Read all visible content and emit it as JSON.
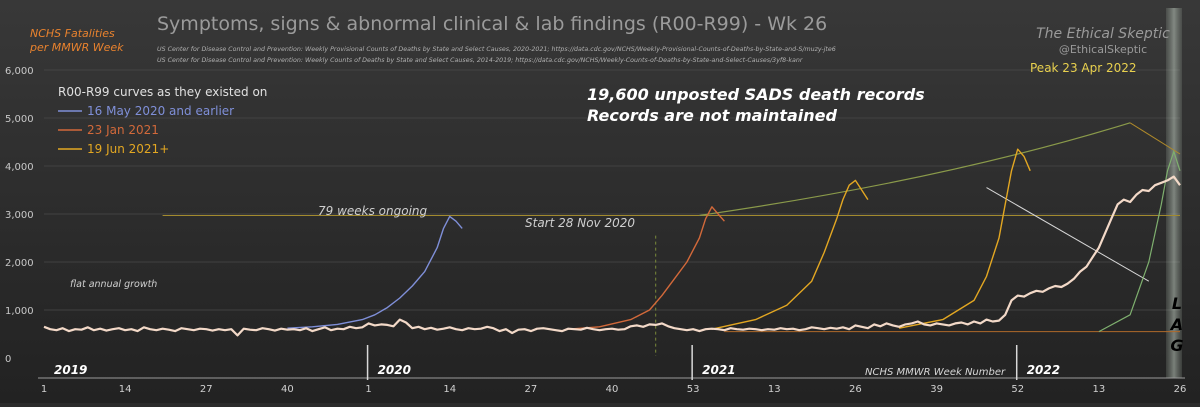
{
  "chart_data": {
    "type": "line",
    "title": "Symptoms, signs & abnormal clinical & lab findings (R00-R99)  -  Wk 26",
    "ylabel_line1": "NCHS Fatalities",
    "ylabel_line2": "per MMWR Week",
    "xlabel": "NCHS MMWR Week Number",
    "sources": [
      "US Center for Disease Control and Prevention: Weekly  Provisional Counts of Deaths by State and Select Causes, 2020-2021; https://data.cdc.gov/NCHS/Weekly-Provisional-Counts-of-Deaths-by-State-and-S/muzy-jte6",
      "US Center for Disease Control and Prevention: Weekly  Counts of Deaths by State and Select Causes, 2014-2019; https://data.cdc.gov/NCHS/Weekly-Counts-of-Deaths-by-State-and-Select-Causes/3yf8-kanr"
    ],
    "brand": {
      "name": "The Ethical Skeptic",
      "handle": "@EthicalSkeptic"
    },
    "ylim": [
      0,
      6000
    ],
    "yticks": [
      0,
      1000,
      2000,
      3000,
      4000,
      5000,
      6000
    ],
    "ytick_labels": [
      "0",
      "1,000",
      "2,000",
      "3,000",
      "4,000",
      "5,000",
      "6,000"
    ],
    "xlim": [
      1,
      183
    ],
    "xticks": [
      {
        "i": 1,
        "label": "1"
      },
      {
        "i": 14,
        "label": "14"
      },
      {
        "i": 27,
        "label": "27"
      },
      {
        "i": 40,
        "label": "40"
      },
      {
        "i": 53,
        "label": "1"
      },
      {
        "i": 66,
        "label": "14"
      },
      {
        "i": 79,
        "label": "27"
      },
      {
        "i": 92,
        "label": "40"
      },
      {
        "i": 105,
        "label": "53"
      },
      {
        "i": 118,
        "label": "13"
      },
      {
        "i": 131,
        "label": "26"
      },
      {
        "i": 144,
        "label": "39"
      },
      {
        "i": 157,
        "label": "52"
      },
      {
        "i": 170,
        "label": "13"
      },
      {
        "i": 183,
        "label": "26"
      }
    ],
    "years": [
      {
        "i": 1,
        "label": "2019"
      },
      {
        "i": 53,
        "label": "2020"
      },
      {
        "i": 105,
        "label": "2021"
      },
      {
        "i": 157,
        "label": "2022"
      }
    ],
    "legend": {
      "title": "R00-R99 curves as they existed on",
      "entries": [
        {
          "label": "16 May 2020 and earlier",
          "color": "#7f8fd8"
        },
        {
          "label": "23 Jan 2021",
          "color": "#d2693a"
        },
        {
          "label": "19 Jun 2021+",
          "color": "#e3a722"
        }
      ]
    },
    "annotations": {
      "headline1": "19,600 unposted SADS death records",
      "headline2": "Records are not maintained",
      "peak": "Peak 23 Apr 2022",
      "weeks_ongoing": "79 weeks ongoing",
      "start": "Start 28  Nov 2020",
      "flat": "flat annual growth",
      "lag": [
        "L",
        "A",
        "G"
      ]
    },
    "reference_levels": {
      "flat": 550,
      "plateau": 2970,
      "plateau2": 2970
    },
    "main_series": {
      "name": "R00-R99 weekly deaths",
      "color": "#f3d9c8",
      "values": [
        650,
        600,
        580,
        620,
        560,
        600,
        590,
        640,
        580,
        610,
        570,
        600,
        620,
        580,
        600,
        560,
        640,
        600,
        580,
        610,
        590,
        560,
        620,
        600,
        580,
        610,
        600,
        570,
        600,
        580,
        600,
        470,
        610,
        590,
        580,
        620,
        600,
        570,
        610,
        590,
        600,
        580,
        620,
        560,
        600,
        640,
        580,
        610,
        600,
        650,
        620,
        640,
        720,
        680,
        700,
        690,
        660,
        800,
        740,
        620,
        650,
        600,
        630,
        590,
        610,
        640,
        600,
        580,
        620,
        600,
        610,
        650,
        620,
        560,
        600,
        520,
        590,
        600,
        560,
        610,
        620,
        600,
        580,
        560,
        610,
        600,
        590,
        630,
        600,
        580,
        600,
        610,
        590,
        600,
        660,
        680,
        650,
        700,
        690,
        720,
        660,
        620,
        600,
        580,
        600,
        560,
        600,
        610,
        600,
        580,
        620,
        600,
        590,
        610,
        600,
        580,
        600,
        590,
        620,
        600,
        610,
        580,
        600,
        640,
        620,
        600,
        630,
        610,
        640,
        600,
        680,
        650,
        620,
        700,
        660,
        720,
        680,
        650,
        700,
        720,
        760,
        700,
        680,
        720,
        700,
        680,
        720,
        740,
        700,
        760,
        720,
        800,
        760,
        780,
        900,
        1200,
        1300,
        1280,
        1350,
        1400,
        1380,
        1450,
        1500,
        1480,
        1550,
        1650,
        1800,
        1900,
        2100,
        2300,
        2600,
        2900,
        3200,
        3300,
        3250,
        3400,
        3500,
        3480,
        3600,
        3650,
        3700,
        3780,
        3600
      ]
    },
    "snapshot_curves": [
      {
        "name": "16 May 2020 and earlier",
        "color": "#7f8fd8",
        "x": [
          40,
          44,
          48,
          52,
          54,
          56,
          58,
          60,
          62,
          64,
          65,
          66,
          67,
          68
        ],
        "y": [
          620,
          650,
          700,
          800,
          900,
          1050,
          1250,
          1500,
          1800,
          2300,
          2700,
          2950,
          2850,
          2700
        ]
      },
      {
        "name": "23 Jan 2021",
        "color": "#d2693a",
        "x": [
          85,
          90,
          95,
          98,
          100,
          102,
          104,
          106,
          107,
          108,
          109,
          110
        ],
        "y": [
          600,
          650,
          800,
          1000,
          1300,
          1650,
          2000,
          2500,
          2900,
          3150,
          3000,
          2850
        ]
      },
      {
        "name": "19 Jun 2021+ (a)",
        "color": "#e3a722",
        "x": [
          108,
          115,
          120,
          124,
          126,
          128,
          129,
          130,
          131,
          132,
          133
        ],
        "y": [
          600,
          800,
          1100,
          1600,
          2200,
          2900,
          3300,
          3600,
          3700,
          3500,
          3300
        ]
      },
      {
        "name": "19 Jun 2021+ (b)",
        "color": "#e3a722",
        "x": [
          138,
          145,
          150,
          152,
          154,
          155,
          156,
          157,
          158,
          159
        ],
        "y": [
          620,
          800,
          1200,
          1700,
          2500,
          3200,
          3900,
          4350,
          4200,
          3900
        ]
      }
    ],
    "lag_curve": {
      "color": "#7fb06f",
      "x": [
        170,
        175,
        178,
        180,
        181,
        182,
        183
      ],
      "y": [
        550,
        900,
        2000,
        3200,
        3900,
        4300,
        3900
      ]
    }
  }
}
